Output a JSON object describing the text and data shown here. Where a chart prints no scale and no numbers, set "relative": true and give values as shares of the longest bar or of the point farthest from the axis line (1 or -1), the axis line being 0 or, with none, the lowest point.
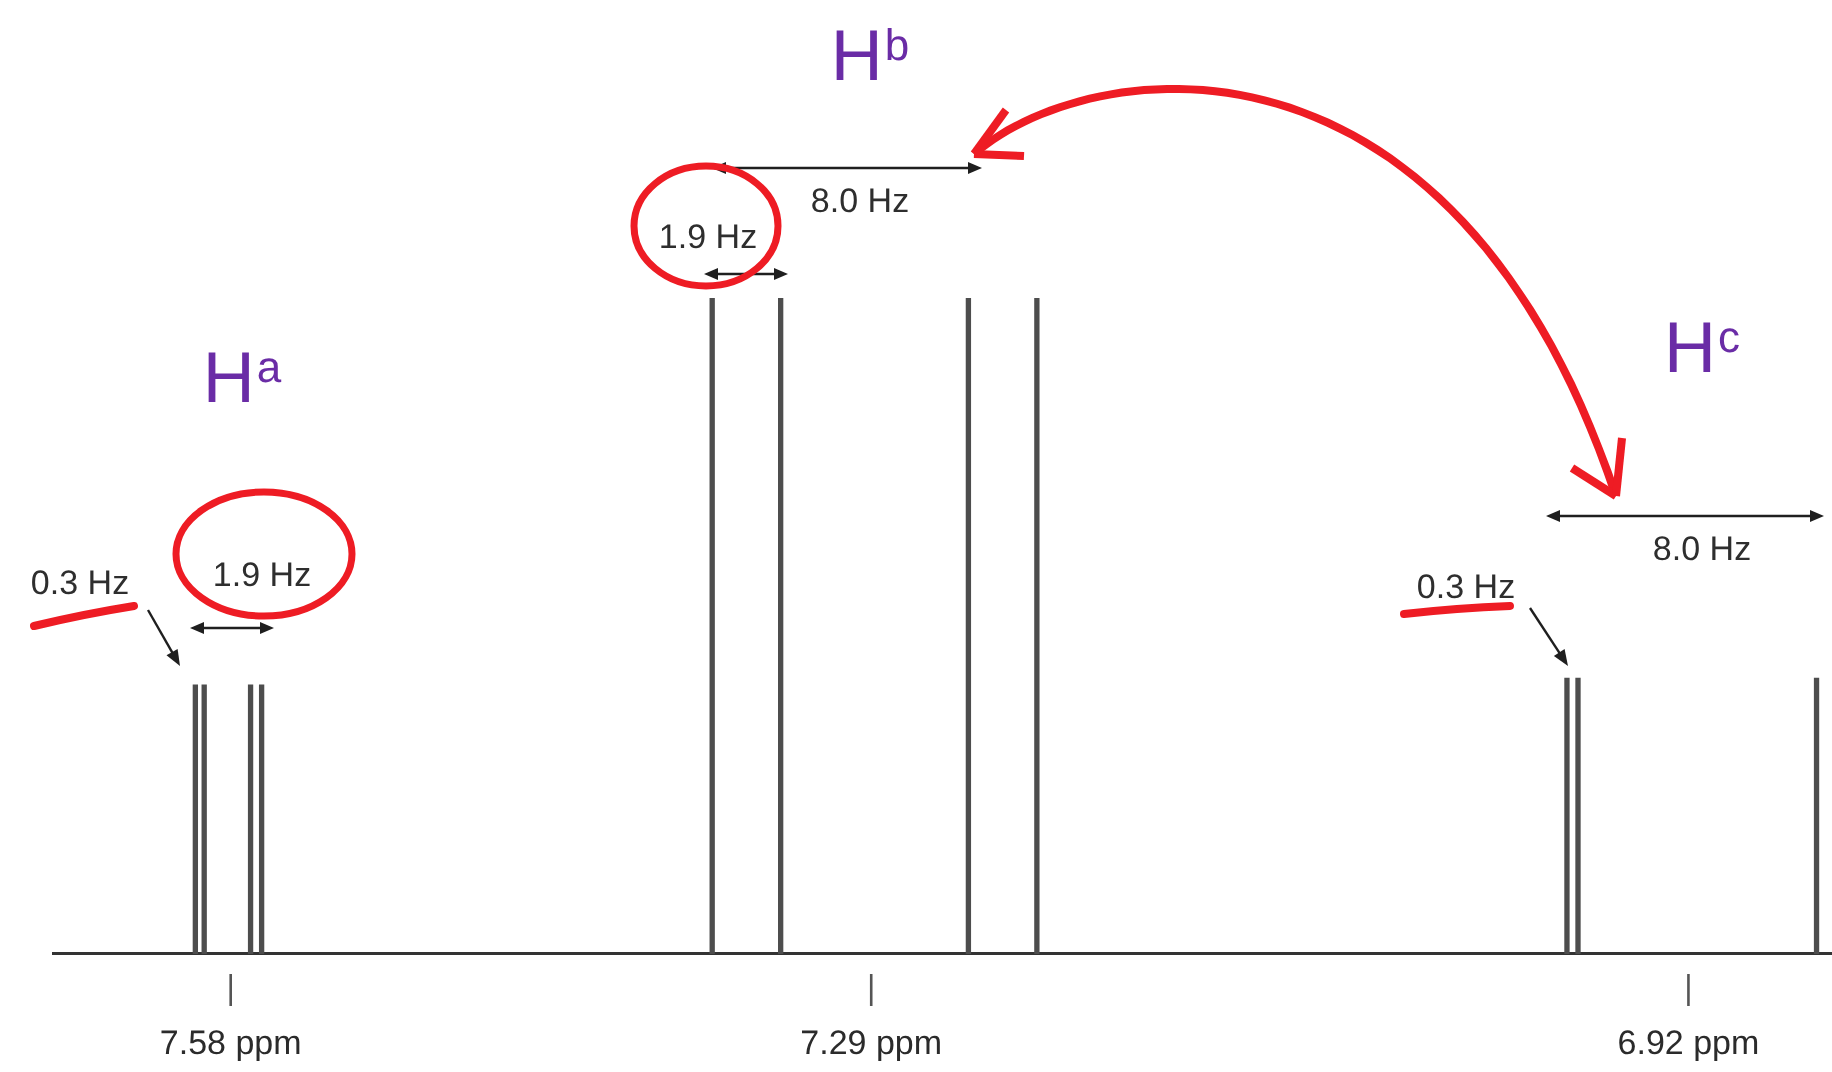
{
  "chart_data": {
    "type": "bar",
    "relative": true,
    "x": [
      7.596,
      7.592,
      7.571,
      7.566,
      7.362,
      7.331,
      7.246,
      7.215,
      6.975,
      6.97,
      6.862
    ],
    "values": [
      0.41,
      0.41,
      0.41,
      0.41,
      1,
      1,
      1,
      1,
      0.42,
      0.42,
      0.42
    ],
    "color": "#4d4d4d",
    "xlim": [
      7.66,
      6.855
    ],
    "xticks": [
      {
        "value": 7.58,
        "label": "7.58 ppm"
      },
      {
        "value": 7.29,
        "label": "7.29 ppm"
      },
      {
        "value": 6.92,
        "label": "6.92 ppm"
      }
    ],
    "annotations": [
      "H$^{b}$",
      "8.0 Hz",
      "1.9 Hz",
      "H$^{c}$",
      "H$^{a}$",
      "8.0 Hz",
      "1.9 Hz",
      "0.3 Hz",
      "0.3 Hz"
    ]
  }
}
